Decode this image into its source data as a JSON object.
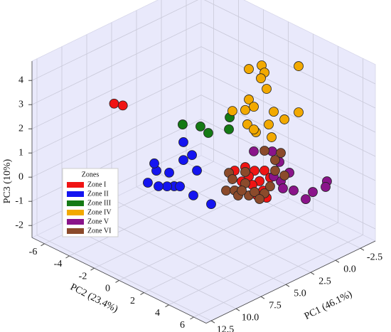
{
  "chart_data": {
    "type": "scatter3d",
    "xlabel": "PC1 (46.1%)",
    "ylabel": "PC2 (23.4%)",
    "zlabel": "PC3 (10%)",
    "xlim": [
      -4,
      13
    ],
    "ylim": [
      -7,
      7
    ],
    "zlim": [
      -2.5,
      4.8
    ],
    "xticks": [
      -2.5,
      {
        "value": 0,
        "label": "0.0"
      },
      2.5,
      {
        "value": 5,
        "label": "5.0"
      },
      7.5,
      {
        "value": 10,
        "label": "10.0"
      },
      12.5
    ],
    "yticks": [
      -6,
      -4,
      -2,
      0,
      2,
      4,
      6
    ],
    "zticks": [
      -2,
      -1,
      0,
      1,
      2,
      3,
      4
    ],
    "grid": true,
    "legend_title": "Zones",
    "legend_loc": "center left",
    "series": [
      {
        "name": "Zone I",
        "color": "#f01414",
        "x": [
          8,
          8,
          4,
          4,
          4,
          4,
          4,
          4,
          4,
          4,
          4,
          4,
          4,
          4
        ],
        "y": [
          -4.4,
          -3.7,
          2.94,
          3.69,
          4.49,
          4.09,
          3.51,
          4.37,
          3.91,
          4.66,
          3.23,
          4.94,
          2.09,
          2.66
        ],
        "z": [
          2.7,
          2.8,
          1.13,
          1.17,
          1.38,
          0.84,
          0.54,
          0.52,
          0.2,
          0.3,
          0.82,
          1.2,
          0.77,
          0.47
        ]
      },
      {
        "name": "Zone II",
        "color": "#1414f0",
        "x": [
          6,
          6,
          6,
          6,
          6,
          6,
          6,
          6,
          6,
          6,
          6,
          6,
          6,
          6
        ],
        "y": [
          -3.29,
          -2.6,
          -2.77,
          -1.57,
          -1.17,
          -1.74,
          -2.43,
          -0.43,
          -0.43,
          0.26,
          0.66,
          0.37,
          1.8,
          -0.71
        ],
        "z": [
          -0.69,
          -0.02,
          0.24,
          0.16,
          -0.3,
          -0.45,
          -0.62,
          1.71,
          0.97,
          1.35,
          0.81,
          -0.29,
          -0.29,
          -0.19
        ]
      },
      {
        "name": "Zone III",
        "color": "#157a15",
        "x": [
          3,
          3,
          3,
          3,
          3
        ],
        "y": [
          -2.89,
          -1.46,
          -0.83,
          0.89,
          0.83
        ],
        "z": [
          1.22,
          1.5,
          1.39,
          2.47,
          1.96
        ]
      },
      {
        "name": "Zone IV",
        "color": "#f2a900",
        "x": [
          -1,
          -1,
          -1,
          -1,
          -1,
          -1,
          -1,
          -1,
          -1,
          -1,
          -1,
          -1,
          -1,
          -1,
          -1,
          -1,
          -1,
          -1
        ],
        "y": [
          -0.77,
          0.26,
          0.49,
          0.2,
          3.23,
          0.66,
          -0.77,
          -0.37,
          -1.06,
          -2.09,
          -0.89,
          -0.2,
          0.83,
          1.23,
          3.23,
          2.09,
          1.06,
          -0.37
        ],
        "z": [
          3.25,
          3.66,
          3.42,
          3.11,
          4.38,
          2.79,
          1.99,
          1.79,
          1.48,
          1.18,
          0.93,
          0.78,
          1.36,
          1.99,
          2.47,
          1.89,
          0.89,
          0.85
        ]
      },
      {
        "name": "Zone V",
        "color": "#8a148a",
        "x": [
          1,
          1,
          1,
          1,
          1,
          1,
          -2,
          -2,
          -2,
          -2,
          1,
          1
        ],
        "y": [
          1.23,
          2.71,
          3.29,
          4.09,
          3.4,
          4.43,
          4.71,
          4.6,
          3.57,
          3.0,
          3.57,
          2.83
        ],
        "z": [
          0.75,
          1.12,
          0.83,
          0.59,
          0.06,
          -0.06,
          -0.21,
          -0.47,
          -0.94,
          -1.38,
          -0.19,
          0.12
        ]
      },
      {
        "name": "Zone VI",
        "color": "#8b4a2b",
        "x": [
          4,
          4,
          4,
          4,
          4,
          4,
          4,
          4,
          4,
          4,
          4,
          4,
          4,
          4,
          4,
          4,
          4,
          4
        ],
        "y": [
          1.63,
          1.4,
          2.09,
          1.91,
          2.94,
          2.37,
          3.23,
          3.69,
          4.49,
          5.34,
          5.8,
          5.34,
          4.49,
          4.94,
          4.09,
          2.66,
          2.94,
          6.09
        ],
        "z": [
          0.56,
          -0.23,
          -0.05,
          0.37,
          0.46,
          -0.19,
          0.03,
          0.29,
          0.44,
          1.59,
          2.44,
          2.03,
          2.2,
          0.84,
          0.1,
          0.09,
          0.93,
          1.58
        ]
      }
    ]
  }
}
